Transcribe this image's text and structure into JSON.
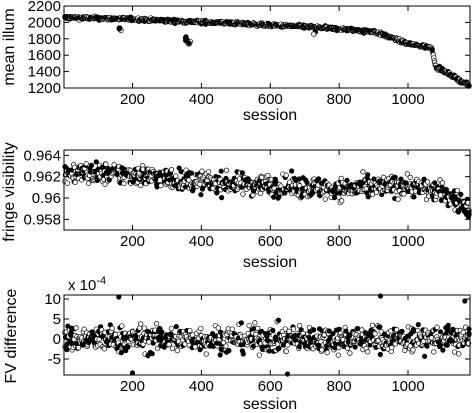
{
  "chart_data": [
    {
      "type": "scatter",
      "ylabel": "mean illum",
      "xlabel": "session",
      "xlim": [
        1,
        1180
      ],
      "ylim": [
        1200,
        2200
      ],
      "xticks": [
        200,
        400,
        600,
        800,
        1000
      ],
      "yticks": [
        1200,
        1400,
        1600,
        1800,
        2000,
        2200
      ],
      "ytick_labels": [
        "1200",
        "1400",
        "1600",
        "1800",
        "2000",
        "2200"
      ],
      "grid": false,
      "markers": "filled and open circles",
      "series": [
        {
          "trend_x": [
            1,
            100,
            200,
            300,
            400,
            500,
            600,
            700,
            800,
            900,
            1000,
            1070,
            1080,
            1120,
            1180
          ],
          "trend_y": [
            2060,
            2050,
            2040,
            2020,
            2005,
            1990,
            1965,
            1950,
            1920,
            1890,
            1740,
            1690,
            1460,
            1370,
            1220
          ],
          "dips": [
            {
              "x": 165,
              "y": 1920
            },
            {
              "x": 355,
              "y": 1800
            },
            {
              "x": 365,
              "y": 1760
            },
            {
              "x": 730,
              "y": 1880
            },
            {
              "x": 870,
              "y": 1880
            }
          ]
        }
      ]
    },
    {
      "type": "scatter",
      "ylabel": "fringe visibility",
      "xlabel": "session",
      "xlim": [
        1,
        1180
      ],
      "ylim": [
        0.957,
        0.9645
      ],
      "xticks": [
        200,
        400,
        600,
        800,
        1000
      ],
      "yticks": [
        0.958,
        0.96,
        0.962,
        0.964
      ],
      "ytick_labels": [
        "0.958",
        "0.96",
        "0.962",
        "0.964"
      ],
      "grid": false,
      "markers": "filled and open circles",
      "series": [
        {
          "trend_x": [
            1,
            200,
            400,
            600,
            800,
            1000,
            1100,
            1180
          ],
          "trend_y": [
            0.9624,
            0.9622,
            0.9615,
            0.9612,
            0.9608,
            0.9612,
            0.9605,
            0.959
          ],
          "spread": 0.0009
        }
      ]
    },
    {
      "type": "scatter",
      "ylabel": "FV difference",
      "xlabel": "session",
      "xlim": [
        1,
        1180
      ],
      "ylim": [
        -9,
        11
      ],
      "y_exponent_label": "x 10",
      "y_exponent_power": "-4",
      "xticks": [
        200,
        400,
        600,
        800,
        1000
      ],
      "yticks": [
        -5,
        0,
        5,
        10
      ],
      "ytick_labels": [
        "-5",
        "0",
        "5",
        "10"
      ],
      "grid": false,
      "markers": "filled and open circles",
      "series": [
        {
          "center": 0,
          "spread": 3.0,
          "outliers": [
            {
              "x": 160,
              "y": 10.5
            },
            {
              "x": 920,
              "y": 10.8
            },
            {
              "x": 1165,
              "y": 9.5
            },
            {
              "x": 200,
              "y": -8.5
            },
            {
              "x": 650,
              "y": -8.8
            }
          ]
        }
      ]
    }
  ]
}
